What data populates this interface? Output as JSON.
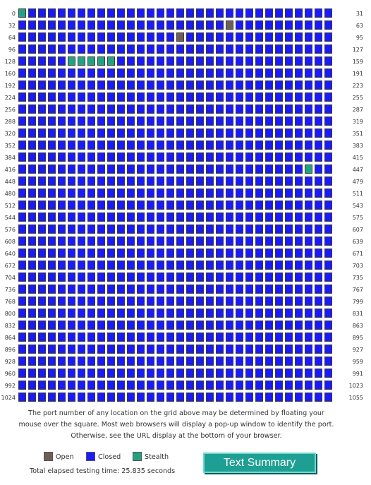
{
  "grid": {
    "rows": 33,
    "columns": 32,
    "left_labels": [
      "0",
      "32",
      "64",
      "96",
      "128",
      "160",
      "192",
      "224",
      "256",
      "288",
      "320",
      "352",
      "384",
      "416",
      "448",
      "480",
      "512",
      "544",
      "576",
      "608",
      "640",
      "672",
      "704",
      "736",
      "768",
      "800",
      "832",
      "864",
      "896",
      "928",
      "960",
      "992",
      "1024"
    ],
    "right_labels": [
      "31",
      "63",
      "95",
      "127",
      "159",
      "191",
      "223",
      "255",
      "287",
      "319",
      "351",
      "383",
      "415",
      "447",
      "479",
      "511",
      "543",
      "575",
      "607",
      "639",
      "671",
      "703",
      "735",
      "767",
      "799",
      "831",
      "863",
      "895",
      "927",
      "959",
      "991",
      "1023",
      "1055"
    ],
    "open_ports": [
      53,
      80
    ],
    "stealth_ports": [
      0,
      133,
      134,
      135,
      136,
      137,
      445
    ],
    "colors": {
      "open": "#6e5e5a",
      "closed": "#1a1aff",
      "stealth": "#21a383"
    }
  },
  "explanation": "The port number of any location on the grid above may be determined by floating your mouse over the square. Most web browsers will display a pop-up window to identify the port. Otherwise, see the URL display at the bottom of your browser.",
  "legend": {
    "open_label": "Open",
    "closed_label": "Closed",
    "stealth_label": "Stealth"
  },
  "elapsed_text": "Total elapsed testing time: 25.835 seconds",
  "summary_button_label": "Text Summary"
}
